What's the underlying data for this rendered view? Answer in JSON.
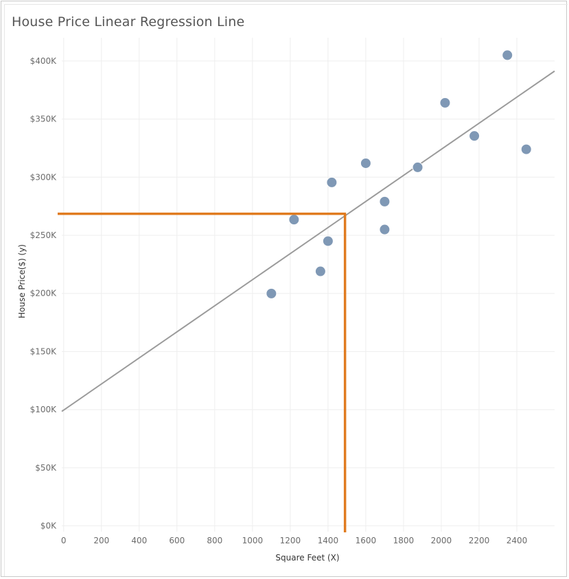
{
  "chart_data": {
    "type": "scatter",
    "title": "House Price Linear Regression Line",
    "xlabel": "Square Feet (X)",
    "ylabel": "House Price($) (y)",
    "xlim": [
      -10,
      2600
    ],
    "ylim": [
      -5000,
      420000
    ],
    "x_ticks": [
      0,
      200,
      400,
      600,
      800,
      1000,
      1200,
      1400,
      1600,
      1800,
      2000,
      2200,
      2400
    ],
    "y_ticks": [
      0,
      50000,
      100000,
      150000,
      200000,
      250000,
      300000,
      350000,
      400000
    ],
    "y_tick_labels": [
      "$0K",
      "$50K",
      "$100K",
      "$150K",
      "$200K",
      "$250K",
      "$300K",
      "$350K",
      "$400K"
    ],
    "grid": true,
    "points": [
      {
        "x": 1100,
        "y": 199900
      },
      {
        "x": 1220,
        "y": 263500
      },
      {
        "x": 1360,
        "y": 219000
      },
      {
        "x": 1400,
        "y": 245000
      },
      {
        "x": 1420,
        "y": 295500
      },
      {
        "x": 1600,
        "y": 312000
      },
      {
        "x": 1700,
        "y": 279000
      },
      {
        "x": 1700,
        "y": 255000
      },
      {
        "x": 1875,
        "y": 308500
      },
      {
        "x": 2020,
        "y": 364000
      },
      {
        "x": 2175,
        "y": 335500
      },
      {
        "x": 2350,
        "y": 405000
      },
      {
        "x": 2450,
        "y": 324000
      }
    ],
    "regression_line": {
      "x": [
        -10,
        2600
      ],
      "y": [
        98500,
        391300
      ]
    },
    "guide_point": {
      "x": 1490,
      "y": 268500
    },
    "colors": {
      "points": "#7f98b5",
      "regression": "#9b9b9b",
      "guide": "#e07b1f",
      "grid": "#eeeeee"
    }
  }
}
